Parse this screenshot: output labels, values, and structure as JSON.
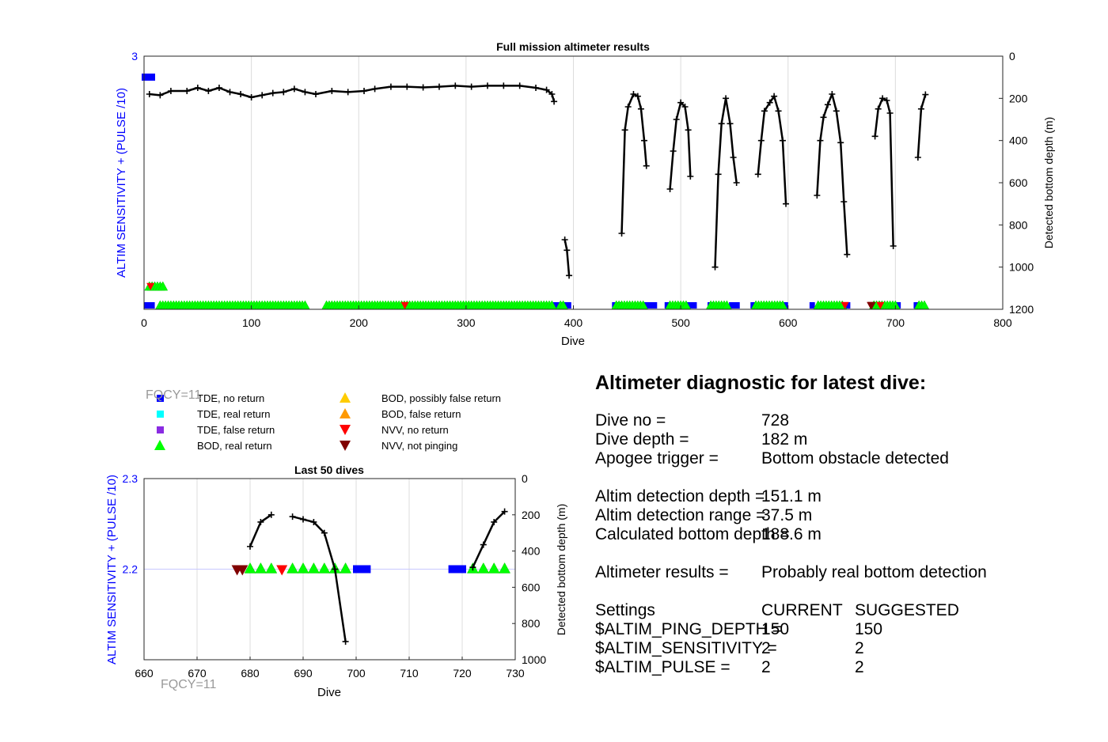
{
  "chart_data": [
    {
      "type": "scatter",
      "title": "Full mission altimeter results",
      "xlabel": "Dive",
      "ylabel": "ALTIM SENSITIVITY + (PULSE /10)",
      "y2label": "Detected bottom depth (m)",
      "xlim": [
        0,
        800
      ],
      "xticks": [
        0,
        100,
        200,
        300,
        400,
        500,
        600,
        700,
        800
      ],
      "ylim_left": [
        0,
        3
      ],
      "yticks_left": [
        3
      ],
      "ylim_right": [
        0,
        1200
      ],
      "yticks_right": [
        0,
        200,
        400,
        600,
        800,
        1000,
        1200
      ],
      "right_axis_reversed": true,
      "grid": true,
      "depth_series": [
        {
          "x": [
            5,
            15,
            25,
            40,
            50,
            60,
            70,
            80,
            90,
            100,
            110,
            120,
            130,
            140,
            150,
            160,
            175,
            190,
            205,
            215,
            230,
            245,
            260,
            275,
            290,
            305,
            320,
            335,
            350,
            365,
            375,
            380,
            382
          ],
          "y": [
            180,
            185,
            165,
            165,
            150,
            165,
            150,
            170,
            180,
            195,
            185,
            175,
            170,
            155,
            170,
            180,
            165,
            170,
            165,
            155,
            145,
            145,
            148,
            145,
            140,
            145,
            140,
            140,
            140,
            150,
            160,
            180,
            215
          ]
        },
        {
          "x": [
            392,
            394,
            396
          ],
          "y": [
            870,
            920,
            1040
          ]
        },
        {
          "x": [
            445,
            448,
            451,
            456,
            460,
            463,
            466,
            468
          ],
          "y": [
            840,
            350,
            240,
            180,
            190,
            250,
            400,
            520
          ]
        },
        {
          "x": [
            490,
            493,
            496,
            500,
            504,
            507,
            509
          ],
          "y": [
            630,
            450,
            300,
            220,
            240,
            350,
            570
          ]
        },
        {
          "x": [
            532,
            535,
            538,
            542,
            546,
            549,
            552
          ],
          "y": [
            1000,
            560,
            320,
            200,
            320,
            480,
            600
          ]
        },
        {
          "x": [
            572,
            575,
            578,
            583,
            587,
            591,
            595,
            598
          ],
          "y": [
            560,
            400,
            260,
            220,
            190,
            260,
            400,
            700
          ]
        },
        {
          "x": [
            627,
            630,
            633,
            637,
            641,
            645,
            649,
            652,
            655
          ],
          "y": [
            660,
            400,
            290,
            230,
            180,
            260,
            410,
            690,
            940
          ]
        },
        {
          "x": [
            681,
            684,
            688,
            692,
            695,
            698
          ],
          "y": [
            380,
            250,
            200,
            210,
            270,
            900
          ]
        },
        {
          "x": [
            721,
            724,
            728
          ],
          "y": [
            480,
            250,
            182
          ]
        }
      ],
      "markers": {
        "tde_no_return_dives": [
          [
            0,
            10
          ],
          [
            380,
            398
          ],
          [
            436,
            446
          ],
          [
            465,
            478
          ],
          [
            485,
            490
          ],
          [
            505,
            515
          ],
          [
            525,
            530
          ],
          [
            545,
            555
          ],
          [
            565,
            570
          ],
          [
            592,
            600
          ],
          [
            620,
            625
          ],
          [
            650,
            658
          ],
          [
            678,
            682
          ],
          [
            700,
            705
          ],
          [
            717,
            722
          ]
        ],
        "bod_real_return_dives": [
          [
            5,
            18
          ],
          [
            15,
            152
          ],
          [
            170,
            380
          ],
          [
            388,
            392
          ],
          [
            440,
            465
          ],
          [
            490,
            505
          ],
          [
            528,
            545
          ],
          [
            570,
            595
          ],
          [
            628,
            652
          ],
          [
            680,
            700
          ],
          [
            722,
            728
          ]
        ],
        "nvv_no_return_dives": [
          6,
          243,
          653,
          686
        ],
        "nvv_not_pinging_dives": [
          677,
          678
        ]
      }
    },
    {
      "type": "scatter",
      "title": "Last 50 dives",
      "xlabel": "Dive",
      "ylabel": "ALTIM SENSITIVITY + (PULSE /10)",
      "y2label": "Detected bottom depth (m)",
      "xlim": [
        660,
        730
      ],
      "xticks": [
        660,
        670,
        680,
        690,
        700,
        710,
        720,
        730
      ],
      "ylim_left": [
        2.1,
        2.3
      ],
      "yticks_left": [
        2.2,
        2.3
      ],
      "ylim_right": [
        0,
        1000
      ],
      "yticks_right": [
        0,
        200,
        400,
        600,
        800,
        1000
      ],
      "right_axis_reversed": true,
      "grid": true,
      "depth_series": [
        {
          "x": [
            680,
            682,
            684
          ],
          "y": [
            375,
            240,
            200
          ]
        },
        {
          "x": [
            688,
            690,
            692,
            694,
            696,
            698
          ],
          "y": [
            210,
            225,
            240,
            300,
            500,
            900
          ]
        },
        {
          "x": [
            722,
            724,
            726,
            728
          ],
          "y": [
            490,
            365,
            240,
            182
          ]
        }
      ],
      "markers": {
        "tde_no_return": [
          700,
          701,
          702,
          718,
          719,
          720
        ],
        "bod_real_return": [
          680,
          682,
          684,
          688,
          690,
          692,
          694,
          696,
          698,
          722,
          724,
          726,
          728
        ],
        "nvv_no_return": [
          686
        ],
        "nvv_not_pinging": [
          678,
          679
        ]
      }
    }
  ],
  "legend": {
    "items": [
      {
        "label": "TDE, no return",
        "marker": "square",
        "color": "#0000ff"
      },
      {
        "label": "TDE, real return",
        "marker": "square",
        "color": "#00ffff"
      },
      {
        "label": "TDE, false return",
        "marker": "square",
        "color": "#8a2be2"
      },
      {
        "label": "BOD, real return",
        "marker": "triangle-up",
        "color": "#00ff00"
      },
      {
        "label": "BOD, possibly false return",
        "marker": "triangle-up",
        "color": "#ffcc00"
      },
      {
        "label": "BOD, false return",
        "marker": "triangle-up",
        "color": "#ff9900"
      },
      {
        "label": "NVV, no return",
        "marker": "triangle-down",
        "color": "#ff0000"
      },
      {
        "label": "NVV, not pinging",
        "marker": "triangle-down",
        "color": "#800000"
      }
    ]
  },
  "fqcy_label": "FQCY=11",
  "diagnostic": {
    "title": "Altimeter diagnostic for latest dive:",
    "dive_no_label": "Dive no =",
    "dive_no": "728",
    "dive_depth_label": "Dive depth =",
    "dive_depth": "182 m",
    "apogee_label": "Apogee trigger =",
    "apogee": "Bottom obstacle detected",
    "altim_depth_label": "Altim detection depth =",
    "altim_depth": "151.1 m",
    "altim_range_label": "Altim detection range =",
    "altim_range": "37.5 m",
    "calc_depth_label": "Calculated bottom depth =",
    "calc_depth": "188.6 m",
    "results_label": "Altimeter results =",
    "results": "Probably real bottom detection",
    "settings_label": "Settings",
    "current_label": "CURRENT",
    "suggested_label": "SUGGESTED",
    "ping_depth_label": "$ALTIM_PING_DEPTH =",
    "ping_depth_current": "150",
    "ping_depth_suggested": "150",
    "sensitivity_label": "$ALTIM_SENSITIVITY =",
    "sensitivity_current": "2",
    "sensitivity_suggested": "2",
    "pulse_label": "$ALTIM_PULSE =",
    "pulse_current": "2",
    "pulse_suggested": "2"
  },
  "colors": {
    "left_axis": "#0000ff",
    "depth_line": "#000000",
    "grid": "#dcdcdc",
    "fqcy": "#999999"
  }
}
